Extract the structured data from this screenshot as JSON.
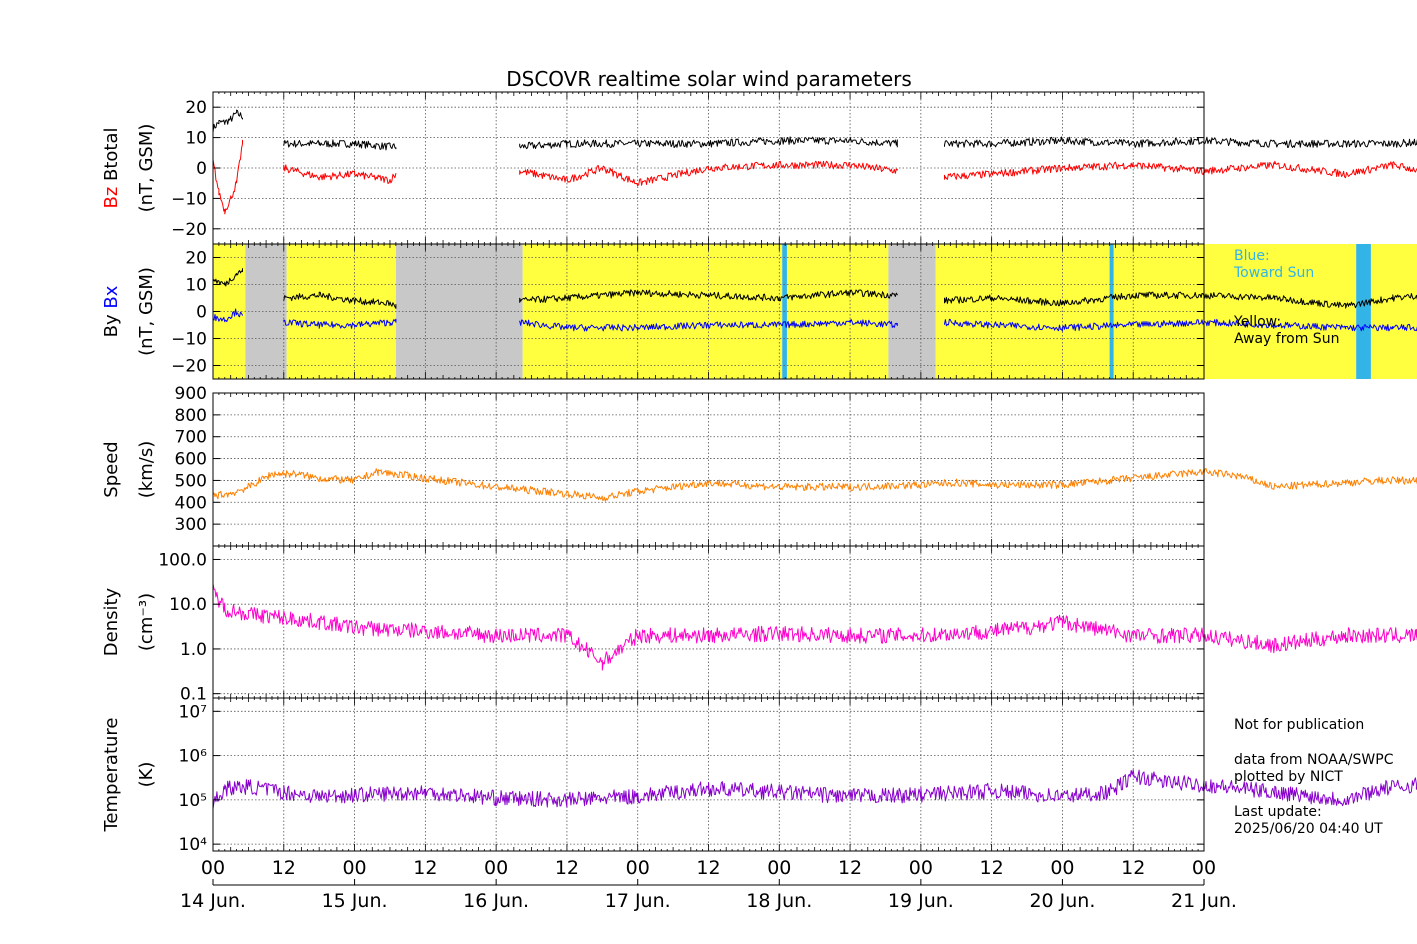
{
  "chart_data": {
    "type": "line",
    "title": "DSCOVR realtime solar wind parameters",
    "x_axis": {
      "range": [
        "2025-06-14 00:00",
        "2025-06-21 00:00"
      ],
      "hour_tick_labels": [
        "00",
        "12",
        "00",
        "12",
        "00",
        "12",
        "00",
        "12",
        "00",
        "12",
        "00",
        "12",
        "00",
        "12",
        "00"
      ],
      "day_labels": [
        "14 Jun.",
        "15 Jun.",
        "16 Jun.",
        "17 Jun.",
        "18 Jun.",
        "19 Jun.",
        "20 Jun.",
        "21 Jun."
      ]
    },
    "panels": [
      {
        "id": "btotal_bz",
        "ylabel_parts": [
          {
            "text": "Bz",
            "color": "#ff0000"
          },
          {
            "text": "Btotal",
            "color": "#000000"
          }
        ],
        "ylabel_unit": "(nT, GSM)",
        "ylim": [
          -25,
          25
        ],
        "scale": "linear",
        "tick_labels": [
          "20",
          "10",
          "0",
          "−10",
          "−20"
        ],
        "series": [
          {
            "name": "Btotal",
            "color": "#000000",
            "x_hours": [
              0,
              1,
              2,
              3,
              4,
              5,
              12,
              18,
              24,
              30,
              31,
              52,
              60,
              72,
              84,
              96,
              108,
              116,
              124,
              132,
              144,
              156,
              168,
              180,
              192,
              200,
              210
            ],
            "values": [
              13,
              15,
              15,
              16,
              18,
              17,
              8,
              8,
              8,
              7,
              7,
              7,
              8,
              8,
              8,
              9,
              9,
              8,
              8,
              8,
              9,
              8,
              9,
              8,
              8,
              8,
              9
            ],
            "gaps_after_hours": [
              5,
              31,
              116
            ]
          },
          {
            "name": "Bz",
            "color": "#ff0000",
            "x_hours": [
              0,
              1,
              2,
              3,
              4,
              5,
              12,
              18,
              24,
              30,
              31,
              52,
              60,
              66,
              72,
              84,
              96,
              108,
              116,
              124,
              132,
              144,
              156,
              168,
              180,
              192,
              200,
              210
            ],
            "values": [
              2,
              -8,
              -14,
              -10,
              -5,
              8,
              0,
              -3,
              -2,
              -4,
              -2,
              -1,
              -4,
              0,
              -5,
              0,
              1,
              1,
              -1,
              -3,
              -2,
              0,
              1,
              -1,
              1,
              -2,
              1,
              -3
            ],
            "gaps_after_hours": [
              5,
              31,
              116
            ]
          }
        ]
      },
      {
        "id": "bx_by",
        "ylabel_parts": [
          {
            "text": "By",
            "color": "#000000"
          },
          {
            "text": "Bx",
            "color": "#0000ff"
          }
        ],
        "ylabel_unit": "(nT, GSM)",
        "ylim": [
          -25,
          25
        ],
        "scale": "linear",
        "tick_labels": [
          "20",
          "10",
          "0",
          "−10",
          "−20"
        ],
        "sector_background": [
          {
            "from_hours": 0,
            "to_hours": 5.5,
            "sector": "away"
          },
          {
            "from_hours": 5.5,
            "to_hours": 12.5,
            "sector": "no_data"
          },
          {
            "from_hours": 12.5,
            "to_hours": 31,
            "sector": "away"
          },
          {
            "from_hours": 31,
            "to_hours": 52.5,
            "sector": "no_data"
          },
          {
            "from_hours": 52.5,
            "to_hours": 96.5,
            "sector": "away"
          },
          {
            "from_hours": 96.5,
            "to_hours": 97.3,
            "sector": "toward"
          },
          {
            "from_hours": 97.3,
            "to_hours": 114.5,
            "sector": "away"
          },
          {
            "from_hours": 114.5,
            "to_hours": 122.5,
            "sector": "no_data"
          },
          {
            "from_hours": 122.5,
            "to_hours": 152,
            "sector": "away"
          },
          {
            "from_hours": 152,
            "to_hours": 152.7,
            "sector": "toward"
          },
          {
            "from_hours": 152.7,
            "to_hours": 193.8,
            "sector": "away"
          },
          {
            "from_hours": 193.8,
            "to_hours": 196.3,
            "sector": "toward"
          },
          {
            "from_hours": 196.3,
            "to_hours": 208.5,
            "sector": "away"
          }
        ],
        "series": [
          {
            "name": "By",
            "color": "#000000",
            "x_hours": [
              0,
              2,
              4,
              5,
              12,
              18,
              24,
              30,
              31,
              52,
              60,
              72,
              84,
              96,
              108,
              116,
              124,
              132,
              144,
              156,
              168,
              180,
              192,
              200,
              210
            ],
            "values": [
              12,
              10,
              14,
              15,
              5,
              6,
              4,
              3,
              2,
              4,
              5,
              7,
              6,
              5,
              7,
              6,
              4,
              5,
              3,
              6,
              6,
              5,
              2,
              5,
              7
            ],
            "gaps_after_hours": [
              5,
              31,
              116
            ]
          },
          {
            "name": "Bx",
            "color": "#0000ff",
            "x_hours": [
              0,
              2,
              4,
              5,
              12,
              18,
              24,
              30,
              31,
              52,
              60,
              72,
              84,
              96,
              108,
              116,
              124,
              132,
              144,
              156,
              168,
              180,
              192,
              200,
              210
            ],
            "values": [
              -2,
              -3,
              0,
              -2,
              -4,
              -5,
              -5,
              -4,
              -4,
              -4,
              -6,
              -6,
              -5,
              -5,
              -4,
              -5,
              -4,
              -5,
              -6,
              -5,
              -4,
              -5,
              -6,
              -6,
              -6
            ],
            "gaps_after_hours": [
              5,
              31,
              116
            ]
          }
        ]
      },
      {
        "id": "speed",
        "ylabel_parts": [
          {
            "text": "Speed",
            "color": "#000000"
          }
        ],
        "ylabel_unit": "(km/s)",
        "ylim": [
          200,
          900
        ],
        "scale": "linear",
        "tick_labels": [
          "900",
          "800",
          "700",
          "600",
          "500",
          "400",
          "300"
        ],
        "series": [
          {
            "name": "Speed",
            "color": "#ff8000",
            "x_hours": [
              0,
              3,
              6,
              10,
              14,
              18,
              24,
              28,
              36,
              48,
              60,
              66,
              72,
              84,
              96,
              108,
              120,
              126,
              132,
              144,
              156,
              168,
              174,
              180,
              186,
              192,
              198,
              204,
              210
            ],
            "values": [
              430,
              440,
              470,
              530,
              530,
              510,
              500,
              540,
              510,
              470,
              440,
              420,
              450,
              490,
              470,
              470,
              480,
              490,
              480,
              480,
              510,
              540,
              520,
              470,
              480,
              490,
              500,
              500,
              510
            ]
          }
        ]
      },
      {
        "id": "density",
        "ylabel_parts": [
          {
            "text": "Density",
            "color": "#000000"
          }
        ],
        "ylabel_unit": "(cm⁻³)",
        "ylim": [
          0.08,
          200
        ],
        "scale": "log",
        "tick_labels": [
          "100.0",
          "10.0",
          "1.0",
          "0.1"
        ],
        "series": [
          {
            "name": "Density",
            "color": "#ff00cc",
            "x_hours": [
              0,
              2,
              6,
              12,
              18,
              24,
              36,
              48,
              60,
              66,
              72,
              84,
              96,
              108,
              120,
              132,
              138,
              144,
              156,
              168,
              180,
              192,
              204,
              210
            ],
            "values": [
              20,
              8,
              6,
              5,
              4,
              3,
              2.5,
              2,
              2,
              0.5,
              2,
              2,
              2.2,
              2,
              2,
              2.5,
              3,
              4,
              2,
              2,
              1.2,
              2,
              2,
              1.5
            ]
          }
        ]
      },
      {
        "id": "temperature",
        "ylabel_parts": [
          {
            "text": "Temperature",
            "color": "#000000"
          }
        ],
        "ylabel_unit": "(K)",
        "ylim": [
          7000,
          20000000
        ],
        "scale": "log",
        "tick_labels": [
          "10⁷",
          "10⁶",
          "10⁵",
          "10⁴"
        ],
        "series": [
          {
            "name": "Temperature",
            "color": "#8800cc",
            "x_hours": [
              0,
              2,
              6,
              12,
              18,
              24,
              36,
              48,
              60,
              72,
              84,
              96,
              108,
              120,
              132,
              144,
              152,
              156,
              162,
              168,
              180,
              192,
              198,
              204,
              210
            ],
            "values": [
              80000,
              180000,
              200000,
              150000,
              120000,
              130000,
              150000,
              110000,
              100000,
              120000,
              180000,
              150000,
              120000,
              130000,
              160000,
              120000,
              150000,
              350000,
              250000,
              220000,
              150000,
              100000,
              180000,
              220000,
              200000
            ]
          }
        ]
      }
    ]
  },
  "legend_notes": {
    "toward_label": "Blue:\nToward Sun",
    "toward_color": "#33b4e6",
    "away_label": "Yellow:\nAway from Sun",
    "away_color": "#ffff40",
    "no_data_color": "#c8c8c8"
  },
  "footer_notes": {
    "disclaimer": "Not for publication",
    "credits": "data from NOAA/SWPC\nplotted by NICT",
    "last_update": "Last update:\n2025/06/20 04:40 UT"
  }
}
